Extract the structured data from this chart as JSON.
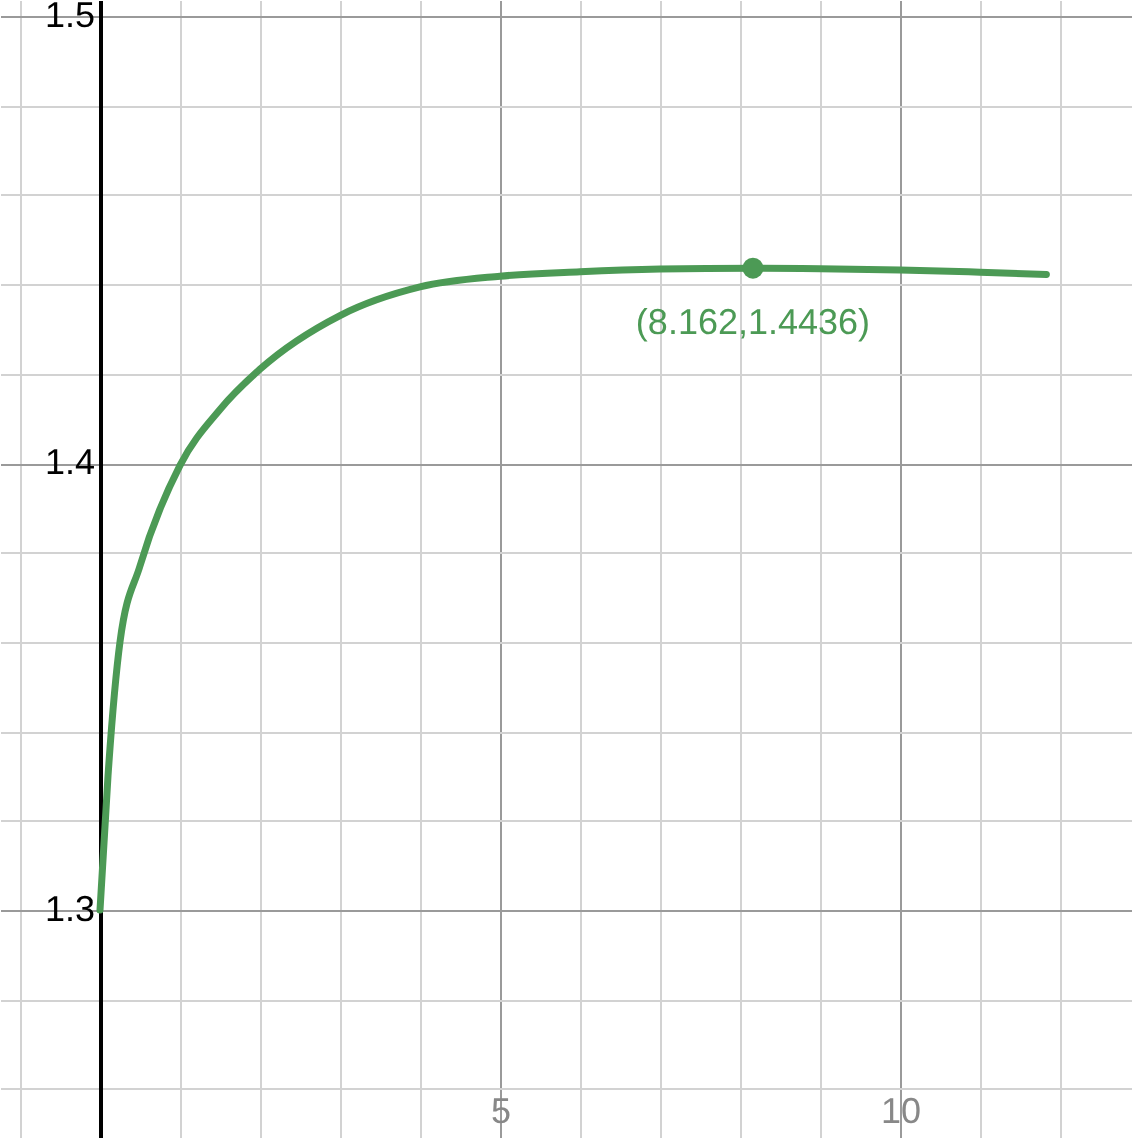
{
  "chart_data": {
    "type": "line",
    "x": [
      0,
      0.1,
      0.25,
      0.5,
      1,
      1.5,
      2,
      3,
      4,
      5,
      6,
      7,
      8.162,
      9,
      10,
      11,
      11.83
    ],
    "series": [
      {
        "color": "#4c9a55",
        "values": [
          1.3,
          1.33,
          1.36,
          1.377,
          1.3995,
          1.412,
          1.421,
          1.433,
          1.4394,
          1.4418,
          1.4428,
          1.4434,
          1.4436,
          1.4435,
          1.4432,
          1.4427,
          1.4422
        ]
      },
      {
        "type": "scatter",
        "color": "#4c9a55",
        "x": [
          8.162
        ],
        "values": [
          1.4436
        ],
        "marker": "circle"
      }
    ],
    "annotations": [
      {
        "text": "(8.162,1.4436)",
        "x": 8.162,
        "y": 1.4436
      }
    ],
    "xlim": [
      -1.25,
      12.9
    ],
    "ylim": [
      1.249,
      1.5036
    ],
    "xticks": [
      {
        "value": -1,
        "label": null
      },
      {
        "value": 0,
        "label": null
      },
      {
        "value": 1,
        "label": null
      },
      {
        "value": 2,
        "label": null
      },
      {
        "value": 3,
        "label": null
      },
      {
        "value": 4,
        "label": null
      },
      5,
      {
        "value": 6,
        "label": null
      },
      {
        "value": 7,
        "label": null
      },
      {
        "value": 8,
        "label": null
      },
      {
        "value": 9,
        "label": null
      },
      10,
      {
        "value": 11,
        "label": null
      },
      {
        "value": 12,
        "label": null
      }
    ],
    "yticks": [
      {
        "value": 1.26,
        "label": null
      },
      {
        "value": 1.28,
        "label": null
      },
      1.3,
      {
        "value": 1.32,
        "label": null
      },
      {
        "value": 1.34,
        "label": null
      },
      {
        "value": 1.36,
        "label": null
      },
      {
        "value": 1.38,
        "label": null
      },
      1.4,
      {
        "value": 1.42,
        "label": null
      },
      {
        "value": 1.44,
        "label": null
      },
      {
        "value": 1.46,
        "label": null
      },
      {
        "value": 1.48,
        "label": null
      },
      1.5
    ],
    "grid": true,
    "marker": "none",
    "line_style": "solid"
  }
}
